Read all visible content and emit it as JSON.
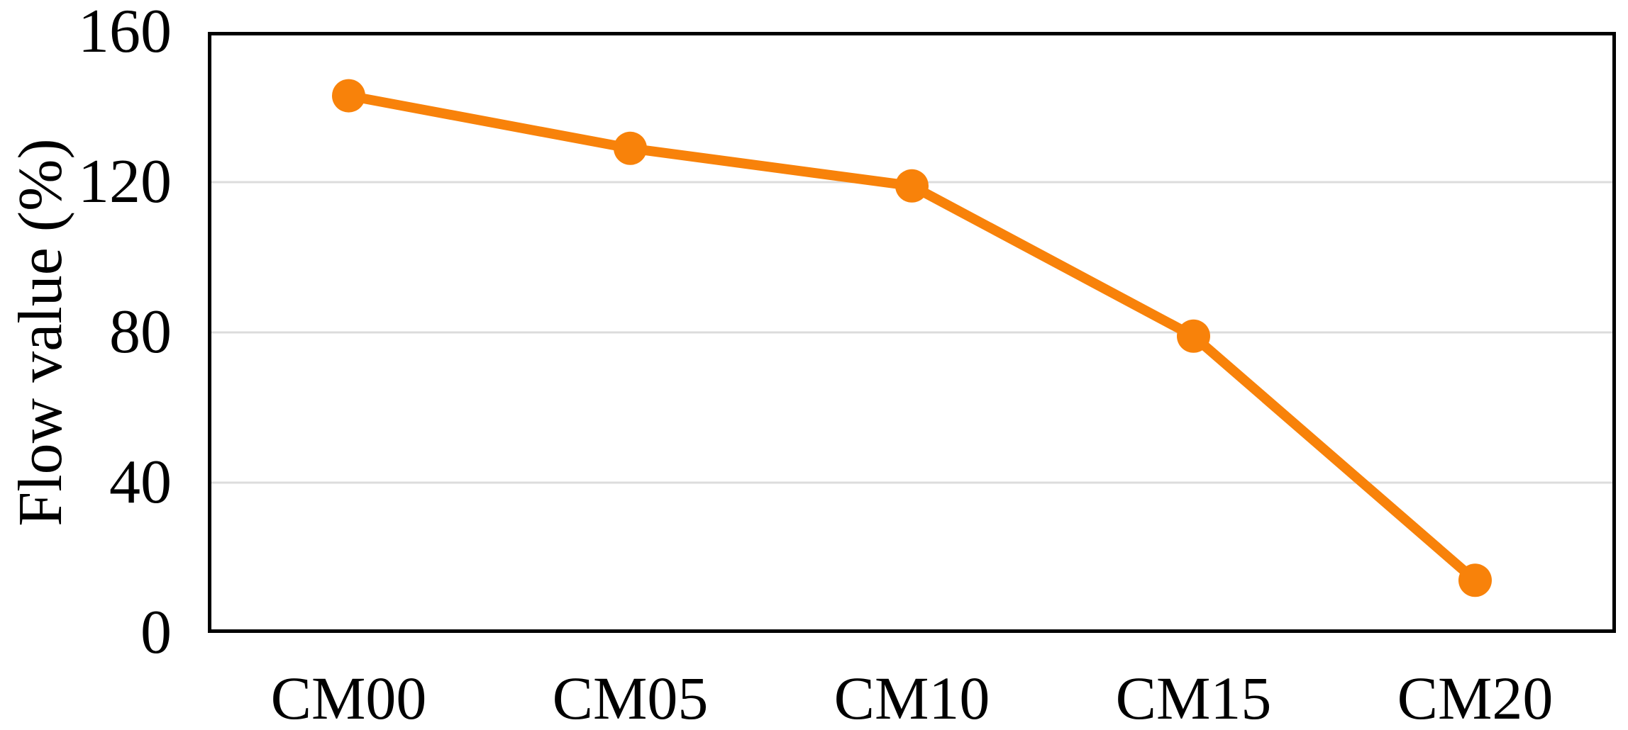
{
  "chart_data": {
    "type": "line",
    "categories": [
      "CM00",
      "CM05",
      "CM10",
      "CM15",
      "CM20"
    ],
    "series": [
      {
        "name": "Flow value",
        "values": [
          143,
          129,
          119,
          79,
          14
        ]
      }
    ],
    "title": "",
    "xlabel": "",
    "ylabel": "Flow value (%)",
    "ylim": [
      0,
      160
    ],
    "yticks": [
      0,
      40,
      80,
      120,
      160
    ],
    "grid": "horizontal major gridlines at 40, 80, 120",
    "legend": "none",
    "marker": "filled circle"
  },
  "colors": {
    "line": "#F8820A",
    "marker": "#F8820A",
    "gridline": "#DCDCDC",
    "border": "#000000",
    "text": "#000000",
    "background": "#FFFFFF"
  }
}
